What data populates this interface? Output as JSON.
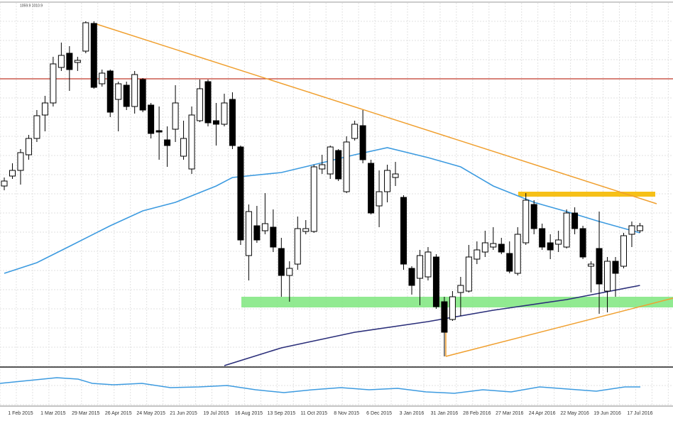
{
  "chart_data": {
    "type": "candlestick",
    "header": "1059.9 1010.9",
    "categories": [
      null,
      null,
      "1 Feb 2015",
      null,
      null,
      null,
      "1 Mar 2015",
      null,
      null,
      null,
      "29 Mar 2015",
      null,
      null,
      null,
      "26 Apr 2015",
      null,
      null,
      null,
      "24 May 2015",
      null,
      null,
      null,
      "21 Jun 2015",
      null,
      null,
      null,
      "19 Jul 2015",
      null,
      null,
      null,
      "16 Aug 2015",
      null,
      null,
      null,
      "13 Sep 2015",
      null,
      null,
      null,
      "11 Oct 2015",
      null,
      null,
      null,
      "8 Nov 2015",
      null,
      null,
      null,
      "6 Dec 2015",
      null,
      null,
      null,
      "3 Jan 2016",
      null,
      null,
      null,
      "31 Jan 2016",
      null,
      null,
      null,
      "28 Feb 2016",
      null,
      null,
      null,
      "27 Mar 2016",
      null,
      null,
      null,
      "24 Apr 2016",
      null,
      null,
      null,
      "22 May 2016",
      null,
      null,
      null,
      "19 Jun 2016",
      null,
      null,
      null,
      "17 Jul 2016"
    ],
    "open": [
      253,
      267,
      275,
      297,
      320,
      353,
      370,
      420,
      440,
      427,
      443,
      482,
      397,
      415,
      375,
      395,
      365,
      403,
      367,
      331,
      318,
      333,
      295,
      277,
      345,
      400,
      345,
      340,
      375,
      308,
      155,
      197,
      190,
      195,
      165,
      127,
      143,
      189,
      189,
      277,
      270,
      303,
      245,
      320,
      338,
      285,
      225,
      245,
      265,
      237,
      137,
      123,
      125,
      153,
      90,
      65,
      103,
      105,
      150,
      160,
      167,
      171,
      158,
      130,
      173,
      227,
      193,
      173,
      171,
      167,
      215,
      193,
      140,
      165,
      105,
      147,
      140,
      185,
      190
    ],
    "high": [
      265,
      285,
      305,
      325,
      360,
      380,
      435,
      455,
      450,
      435,
      485,
      485,
      417,
      417,
      400,
      400,
      415,
      405,
      370,
      365,
      337,
      395,
      345,
      365,
      403,
      403,
      370,
      383,
      385,
      310,
      227,
      225,
      243,
      220,
      180,
      147,
      210,
      205,
      283,
      297,
      310,
      305,
      323,
      345,
      360,
      290,
      275,
      283,
      287,
      240,
      140,
      163,
      167,
      157,
      97,
      105,
      125,
      170,
      175,
      190,
      195,
      180,
      175,
      195,
      243,
      233,
      200,
      185,
      190,
      220,
      223,
      197,
      147,
      217,
      153,
      153,
      187,
      203,
      201
    ],
    "low": [
      247,
      263,
      255,
      290,
      315,
      330,
      365,
      415,
      387,
      415,
      440,
      390,
      393,
      350,
      330,
      360,
      355,
      357,
      320,
      290,
      280,
      315,
      290,
      270,
      343,
      337,
      310,
      337,
      305,
      170,
      120,
      173,
      185,
      160,
      97,
      90,
      135,
      185,
      187,
      270,
      263,
      260,
      243,
      317,
      285,
      213,
      195,
      230,
      253,
      135,
      100,
      85,
      120,
      80,
      13,
      63,
      70,
      103,
      143,
      153,
      163,
      157,
      130,
      127,
      170,
      185,
      163,
      150,
      160,
      165,
      185,
      150,
      103,
      73,
      75,
      97,
      137,
      167,
      187
    ],
    "close": [
      260,
      275,
      300,
      320,
      352,
      370,
      425,
      437,
      417,
      430,
      483,
      392,
      412,
      357,
      397,
      365,
      410,
      360,
      327,
      329,
      310,
      370,
      320,
      353,
      390,
      342,
      340,
      370,
      310,
      177,
      217,
      177,
      200,
      167,
      127,
      137,
      193,
      193,
      280,
      283,
      308,
      263,
      315,
      340,
      290,
      215,
      245,
      275,
      270,
      143,
      113,
      155,
      160,
      83,
      47,
      97,
      113,
      153,
      163,
      173,
      172,
      160,
      133,
      185,
      233,
      193,
      167,
      163,
      177,
      215,
      193,
      153,
      143,
      115,
      147,
      130,
      183,
      197,
      197
    ],
    "up_color": "#ffffff",
    "down_color": "#000000",
    "series": [
      {
        "color": "#3d9be0",
        "x": [
          0,
          4,
          8,
          13,
          17,
          21,
          26,
          28,
          34,
          38,
          43,
          47,
          52,
          56,
          60,
          65,
          69,
          73,
          78
        ],
        "values": [
          130,
          145,
          168,
          197,
          218,
          230,
          253,
          265,
          272,
          283,
          297,
          307,
          293,
          280,
          253,
          230,
          217,
          203,
          187
        ]
      },
      {
        "color": "#2b2f7a",
        "x": [
          27,
          34,
          43,
          52,
          60,
          69,
          78
        ],
        "values": [
          0,
          25,
          47,
          62,
          78,
          93,
          113
        ]
      }
    ],
    "ylim": [
      0,
      510
    ],
    "grid": true
  }
}
